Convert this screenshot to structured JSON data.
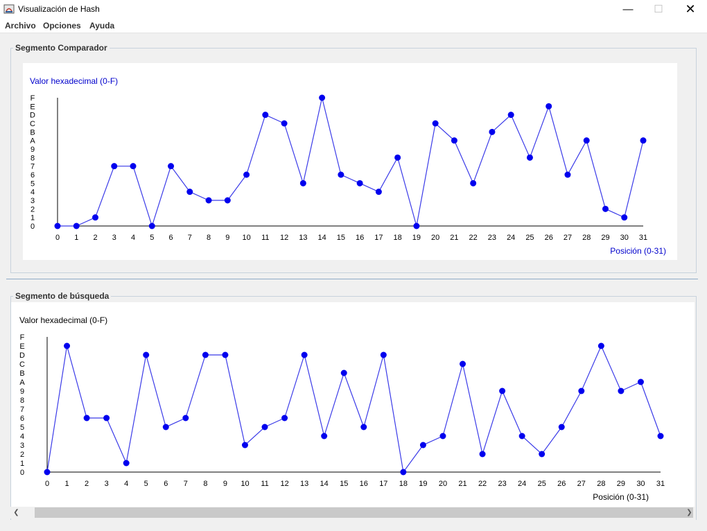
{
  "window": {
    "title": "Visualización de Hash",
    "minimize_icon": "minimize-icon",
    "maximize_icon": "maximize-icon",
    "close_icon": "close-icon"
  },
  "menu": {
    "items": [
      "Archivo",
      "Opciones",
      "Ayuda"
    ]
  },
  "chart_data": [
    {
      "type": "line",
      "panel_title": "Segmento Comparador",
      "title": "",
      "ylabel": "Valor hexadecimal (0-F)",
      "xlabel": "Posición (0-31)",
      "y_tick_labels": [
        "0",
        "1",
        "2",
        "3",
        "4",
        "5",
        "6",
        "7",
        "8",
        "9",
        "A",
        "B",
        "C",
        "D",
        "E",
        "F"
      ],
      "x": [
        0,
        1,
        2,
        3,
        4,
        5,
        6,
        7,
        8,
        9,
        10,
        11,
        12,
        13,
        14,
        15,
        16,
        17,
        18,
        19,
        20,
        21,
        22,
        23,
        24,
        25,
        26,
        27,
        28,
        29,
        30,
        31
      ],
      "values": [
        0,
        0,
        1,
        7,
        7,
        0,
        7,
        4,
        3,
        3,
        6,
        13,
        12,
        5,
        15,
        6,
        5,
        4,
        8,
        0,
        12,
        10,
        5,
        11,
        13,
        8,
        14,
        6,
        10,
        2,
        1,
        10
      ],
      "ylim": [
        0,
        15
      ],
      "xlim": [
        0,
        31
      ],
      "label_color": "#0000cc",
      "series_color": "#3a3ae8",
      "marker_color": "#0000ee"
    },
    {
      "type": "line",
      "panel_title": "Segmento de búsqueda",
      "title": "",
      "ylabel": "Valor hexadecimal (0-F)",
      "xlabel": "Posición (0-31)",
      "y_tick_labels": [
        "0",
        "1",
        "2",
        "3",
        "4",
        "5",
        "6",
        "7",
        "8",
        "9",
        "A",
        "B",
        "C",
        "D",
        "E",
        "F"
      ],
      "x": [
        0,
        1,
        2,
        3,
        4,
        5,
        6,
        7,
        8,
        9,
        10,
        11,
        12,
        13,
        14,
        15,
        16,
        17,
        18,
        19,
        20,
        21,
        22,
        23,
        24,
        25,
        26,
        27,
        28,
        29,
        30,
        31
      ],
      "values": [
        0,
        14,
        6,
        6,
        1,
        13,
        5,
        6,
        13,
        13,
        3,
        5,
        6,
        13,
        4,
        11,
        5,
        13,
        0,
        3,
        4,
        12,
        2,
        9,
        4,
        2,
        5,
        9,
        14,
        9,
        10,
        4
      ],
      "ylim": [
        0,
        15
      ],
      "xlim": [
        0,
        31
      ],
      "label_color": "#000000",
      "series_color": "#3a3ae8",
      "marker_color": "#0000ee"
    }
  ],
  "scrollbar": {
    "left_icon": "scroll-left-icon",
    "right_icon": "scroll-right-icon"
  }
}
